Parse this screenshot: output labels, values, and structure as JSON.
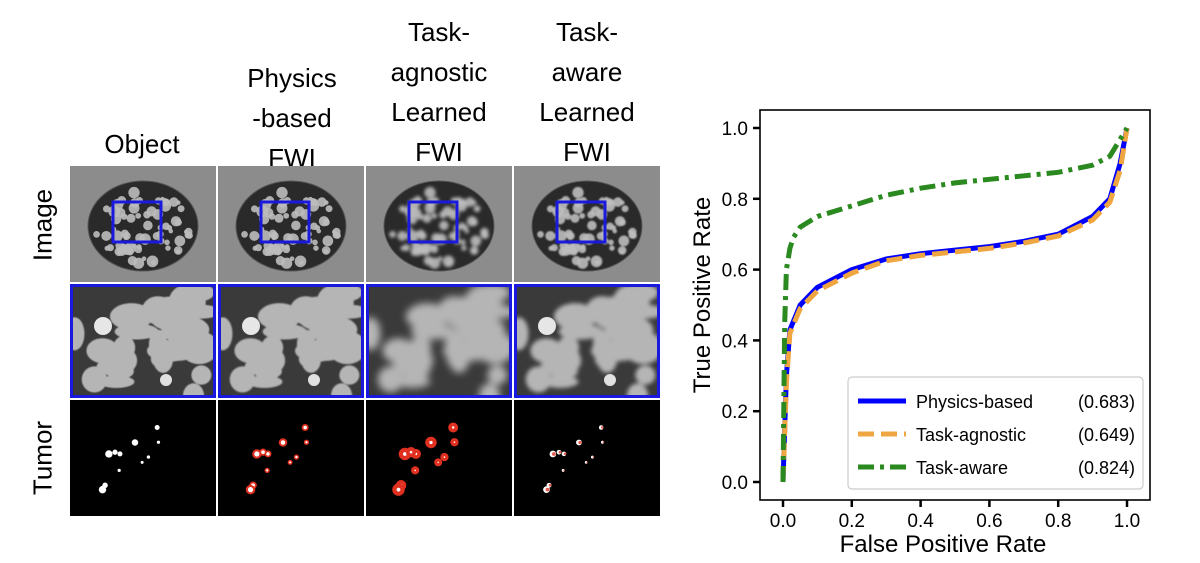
{
  "columns": [
    {
      "label": "Object"
    },
    {
      "label": "Physics\n-based\nFWI"
    },
    {
      "label": "Task-\nagnostic\nLearned\nFWI"
    },
    {
      "label": "Task-\naware\nLearned\nFWI"
    }
  ],
  "rows": [
    {
      "label": "Image"
    },
    {
      "label": ""
    },
    {
      "label": "Tumor"
    }
  ],
  "colors": {
    "roi_box": "#1a1adf",
    "physics": "#0000ff",
    "task_agnostic": "#f0a640",
    "task_aware": "#2a8a1f",
    "tumor_overlay": "#e03020"
  },
  "chart_data": {
    "type": "line",
    "title": "",
    "xlabel": "False Positive Rate",
    "ylabel": "True Positive Rate",
    "xlim": [
      0.0,
      1.0
    ],
    "ylim": [
      0.0,
      1.0
    ],
    "xticks": [
      "0.0",
      "0.2",
      "0.4",
      "0.6",
      "0.8",
      "1.0"
    ],
    "yticks": [
      "0.0",
      "0.2",
      "0.4",
      "0.6",
      "0.8",
      "1.0"
    ],
    "grid": false,
    "legend_position": "bottom-right",
    "series": [
      {
        "name": "Physics-based",
        "auc": "(0.683)",
        "style": "solid",
        "color": "#0000ff",
        "x": [
          0.0,
          0.01,
          0.02,
          0.05,
          0.1,
          0.2,
          0.3,
          0.4,
          0.5,
          0.6,
          0.7,
          0.8,
          0.9,
          0.95,
          0.98,
          1.0
        ],
        "y": [
          0.0,
          0.3,
          0.43,
          0.5,
          0.55,
          0.6,
          0.63,
          0.645,
          0.655,
          0.665,
          0.68,
          0.7,
          0.75,
          0.8,
          0.9,
          1.0
        ]
      },
      {
        "name": "Task-agnostic",
        "auc": "(0.649)",
        "style": "dashed",
        "color": "#f0a640",
        "x": [
          0.0,
          0.01,
          0.02,
          0.05,
          0.1,
          0.2,
          0.3,
          0.4,
          0.5,
          0.6,
          0.7,
          0.8,
          0.9,
          0.95,
          0.98,
          1.0
        ],
        "y": [
          0.0,
          0.28,
          0.42,
          0.49,
          0.54,
          0.59,
          0.625,
          0.64,
          0.65,
          0.66,
          0.675,
          0.695,
          0.74,
          0.79,
          0.88,
          1.0
        ]
      },
      {
        "name": "Task-aware",
        "auc": "(0.824)",
        "style": "dashdot",
        "color": "#2a8a1f",
        "x": [
          0.0,
          0.005,
          0.01,
          0.02,
          0.03,
          0.05,
          0.1,
          0.2,
          0.3,
          0.4,
          0.5,
          0.6,
          0.7,
          0.8,
          0.9,
          0.95,
          1.0
        ],
        "y": [
          0.0,
          0.45,
          0.6,
          0.66,
          0.69,
          0.72,
          0.75,
          0.78,
          0.81,
          0.83,
          0.845,
          0.855,
          0.865,
          0.875,
          0.895,
          0.92,
          1.0
        ]
      }
    ]
  }
}
